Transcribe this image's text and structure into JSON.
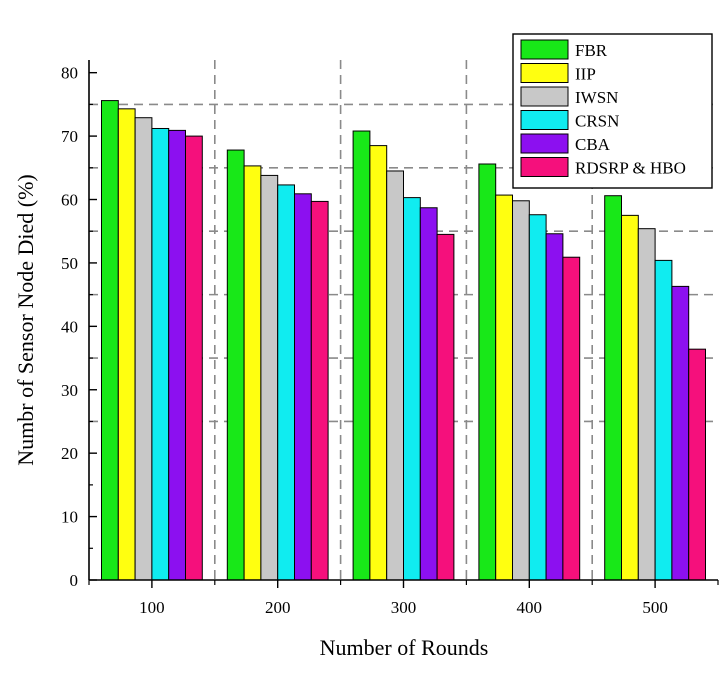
{
  "chart_data": {
    "type": "bar",
    "title": "",
    "xlabel": "Number of Rounds",
    "ylabel": "Numbr of Sensor Node Died (%)",
    "categories": [
      "100",
      "200",
      "300",
      "400",
      "500"
    ],
    "ylim": [
      0,
      82
    ],
    "yticks": [
      0,
      10,
      20,
      30,
      40,
      50,
      60,
      70,
      80
    ],
    "grid": "dashed gridlines at y=25,35,45,55,65,75 and between categories",
    "legend_position": "top-right",
    "series": [
      {
        "name": "FBR",
        "color": "#18e818",
        "values": [
          75.6,
          67.8,
          70.8,
          65.6,
          60.6
        ]
      },
      {
        "name": "IIP",
        "color": "#ffff10",
        "values": [
          74.3,
          65.3,
          68.5,
          60.7,
          57.5
        ]
      },
      {
        "name": "IWSN",
        "color": "#c8c8c8",
        "values": [
          72.9,
          63.8,
          64.5,
          59.8,
          55.4
        ]
      },
      {
        "name": "CRSN",
        "color": "#10ecf0",
        "values": [
          71.2,
          62.3,
          60.3,
          57.6,
          50.4
        ]
      },
      {
        "name": "CBA",
        "color": "#8c10f0",
        "values": [
          70.9,
          60.9,
          58.7,
          54.6,
          46.3
        ]
      },
      {
        "name": "RDSRP & HBO",
        "color": "#f5107c",
        "values": [
          70.0,
          59.7,
          54.5,
          50.9,
          36.4
        ]
      }
    ]
  }
}
